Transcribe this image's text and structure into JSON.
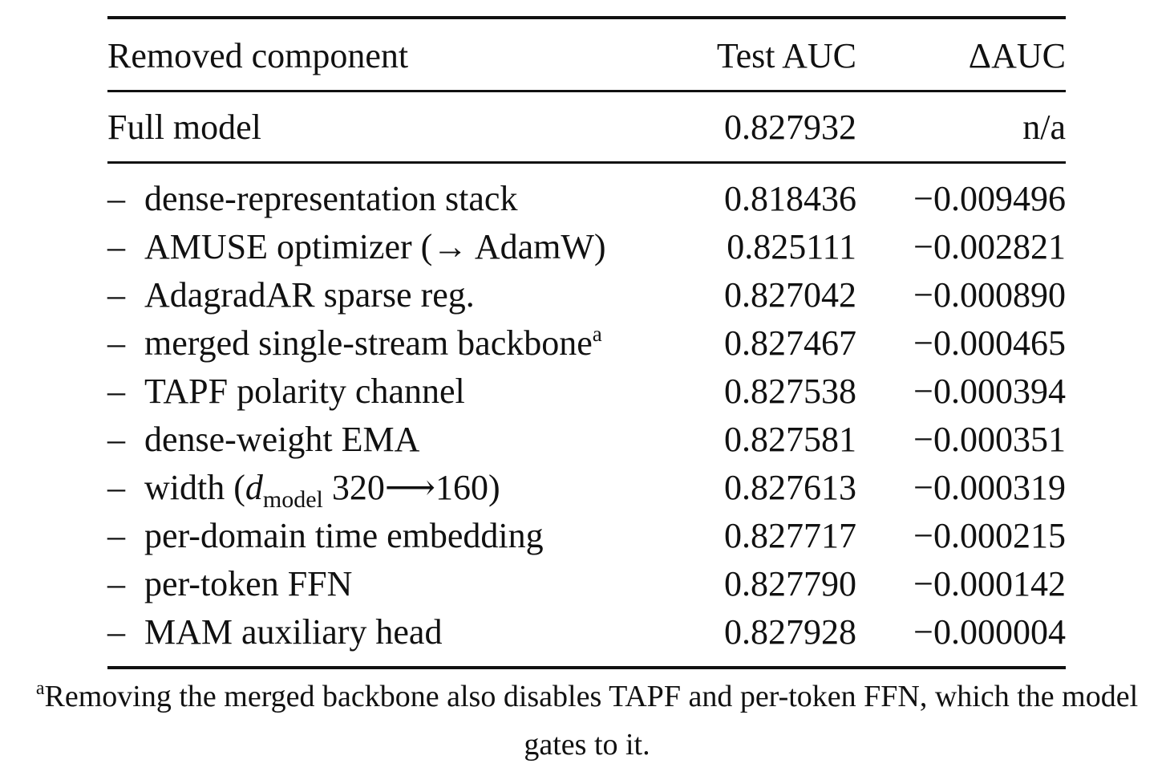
{
  "table": {
    "headers": {
      "component": "Removed component",
      "auc": "Test AUC",
      "delta": "ΔAUC"
    },
    "full_model": {
      "name": "Full model",
      "auc": "0.827932",
      "delta": "n/a"
    },
    "removal_prefix": "–",
    "rows": [
      {
        "name": "dense-representation stack",
        "auc": "0.818436",
        "delta": "−0.009496"
      },
      {
        "name": "AMUSE optimizer (→ AdamW)",
        "auc": "0.825111",
        "delta": "−0.002821"
      },
      {
        "name": "AdagradAR sparse reg.",
        "auc": "0.827042",
        "delta": "−0.000890"
      },
      {
        "name": "merged single-stream backbone",
        "footnote_marker": "a",
        "auc": "0.827467",
        "delta": "−0.000465"
      },
      {
        "name": "TAPF polarity channel",
        "auc": "0.827538",
        "delta": "−0.000394"
      },
      {
        "name": "dense-weight EMA",
        "auc": "0.827581",
        "delta": "−0.000351"
      },
      {
        "name_before": "width (",
        "name_var": "d",
        "name_sub": "model",
        "name_after": " 320⟶160)",
        "auc": "0.827613",
        "delta": "−0.000319"
      },
      {
        "name": "per-domain time embedding",
        "auc": "0.827717",
        "delta": "−0.000215"
      },
      {
        "name": "per-token FFN",
        "auc": "0.827790",
        "delta": "−0.000142"
      },
      {
        "name": "MAM auxiliary head",
        "auc": "0.827928",
        "delta": "−0.000004"
      }
    ]
  },
  "footnote": {
    "marker": "a",
    "text": "Removing the merged backbone also disables TAPF and per-token FFN, which the model gates to it."
  }
}
